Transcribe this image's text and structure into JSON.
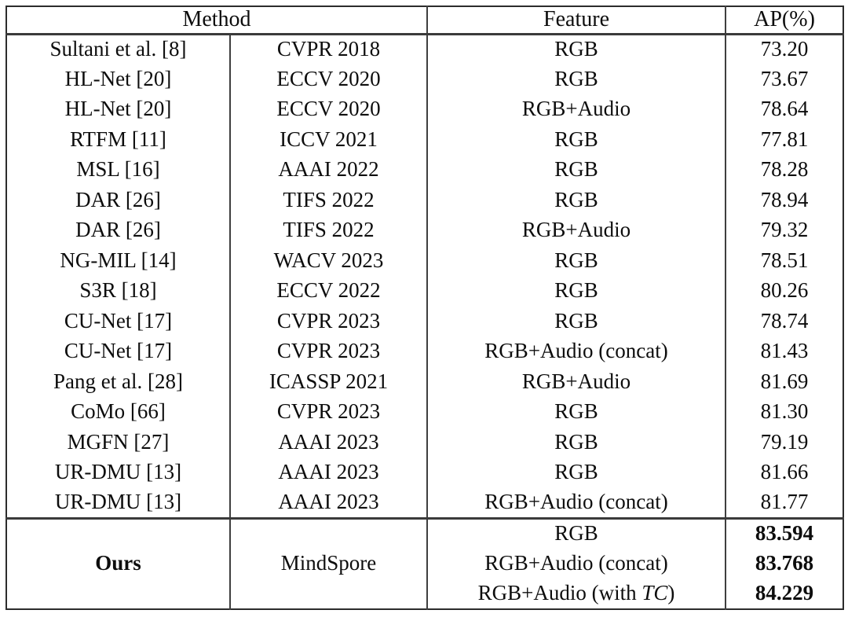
{
  "colors": {
    "background": "#ffffff",
    "text": "#0d0d0d",
    "border": "#3a3a3a"
  },
  "table": {
    "header": {
      "method": "Method",
      "feature": "Feature",
      "ap": "AP(%)"
    },
    "rows": [
      {
        "method": "Sultani et al. [8]",
        "venue": "CVPR 2018",
        "feature": "RGB",
        "ap": "73.20"
      },
      {
        "method": "HL-Net [20]",
        "venue": "ECCV 2020",
        "feature": "RGB",
        "ap": "73.67"
      },
      {
        "method": "HL-Net [20]",
        "venue": "ECCV 2020",
        "feature": "RGB+Audio",
        "ap": "78.64"
      },
      {
        "method": "RTFM [11]",
        "venue": "ICCV 2021",
        "feature": "RGB",
        "ap": "77.81"
      },
      {
        "method": "MSL [16]",
        "venue": "AAAI 2022",
        "feature": "RGB",
        "ap": "78.28"
      },
      {
        "method": "DAR [26]",
        "venue": "TIFS 2022",
        "feature": "RGB",
        "ap": "78.94"
      },
      {
        "method": "DAR [26]",
        "venue": "TIFS 2022",
        "feature": "RGB+Audio",
        "ap": "79.32"
      },
      {
        "method": "NG-MIL [14]",
        "venue": "WACV 2023",
        "feature": "RGB",
        "ap": "78.51"
      },
      {
        "method": "S3R [18]",
        "venue": "ECCV 2022",
        "feature": "RGB",
        "ap": "80.26"
      },
      {
        "method": "CU-Net [17]",
        "venue": "CVPR 2023",
        "feature": "RGB",
        "ap": "78.74"
      },
      {
        "method": "CU-Net [17]",
        "venue": "CVPR 2023",
        "feature": "RGB+Audio (concat)",
        "ap": "81.43"
      },
      {
        "method": "Pang et al. [28]",
        "venue": "ICASSP 2021",
        "feature": "RGB+Audio",
        "ap": "81.69"
      },
      {
        "method": "CoMo [66]",
        "venue": "CVPR 2023",
        "feature": "RGB",
        "ap": "81.30"
      },
      {
        "method": "MGFN [27]",
        "venue": "AAAI 2023",
        "feature": "RGB",
        "ap": "79.19"
      },
      {
        "method": "UR-DMU [13]",
        "venue": "AAAI 2023",
        "feature": "RGB",
        "ap": "81.66"
      },
      {
        "method": "UR-DMU [13]",
        "venue": "AAAI 2023",
        "feature": "RGB+Audio (concat)",
        "ap": "81.77"
      }
    ],
    "ours": {
      "method": "Ours",
      "venue": "MindSpore",
      "sub_rows": [
        {
          "feature": "RGB",
          "ap": "83.594"
        },
        {
          "feature": "RGB+Audio (concat)",
          "ap": "83.768"
        },
        {
          "feature_prefix": "RGB+Audio (with ",
          "feature_italic": "TC",
          "feature_suffix": ")",
          "ap": "84.229"
        }
      ]
    }
  }
}
